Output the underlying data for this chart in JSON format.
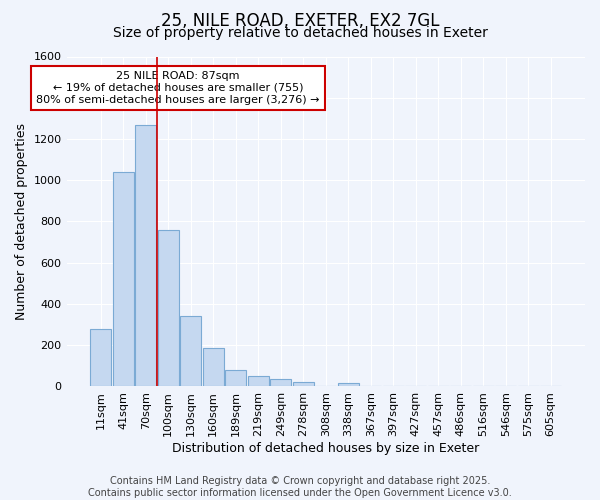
{
  "title1": "25, NILE ROAD, EXETER, EX2 7GL",
  "title2": "Size of property relative to detached houses in Exeter",
  "xlabel": "Distribution of detached houses by size in Exeter",
  "ylabel": "Number of detached properties",
  "bar_labels": [
    "11sqm",
    "41sqm",
    "70sqm",
    "100sqm",
    "130sqm",
    "160sqm",
    "189sqm",
    "219sqm",
    "249sqm",
    "278sqm",
    "308sqm",
    "338sqm",
    "367sqm",
    "397sqm",
    "427sqm",
    "457sqm",
    "486sqm",
    "516sqm",
    "546sqm",
    "575sqm",
    "605sqm"
  ],
  "bar_values": [
    280,
    1040,
    1270,
    760,
    340,
    185,
    80,
    50,
    35,
    22,
    0,
    15,
    0,
    0,
    0,
    0,
    0,
    0,
    0,
    0,
    0
  ],
  "bar_color": "#c5d8f0",
  "bar_edge_color": "#7baad4",
  "vline_x": 2.5,
  "vline_color": "#cc0000",
  "annotation_text": "25 NILE ROAD: 87sqm\n← 19% of detached houses are smaller (755)\n80% of semi-detached houses are larger (3,276) →",
  "annotation_box_facecolor": "#ffffff",
  "annotation_box_edge": "#cc0000",
  "ylim": [
    0,
    1600
  ],
  "yticks": [
    0,
    200,
    400,
    600,
    800,
    1000,
    1200,
    1400,
    1600
  ],
  "bg_color": "#f0f4fc",
  "grid_color": "#ffffff",
  "footer_text": "Contains HM Land Registry data © Crown copyright and database right 2025.\nContains public sector information licensed under the Open Government Licence v3.0.",
  "title1_fontsize": 12,
  "title2_fontsize": 10,
  "xlabel_fontsize": 9,
  "ylabel_fontsize": 9,
  "tick_fontsize": 8,
  "annotation_fontsize": 8,
  "footer_fontsize": 7
}
